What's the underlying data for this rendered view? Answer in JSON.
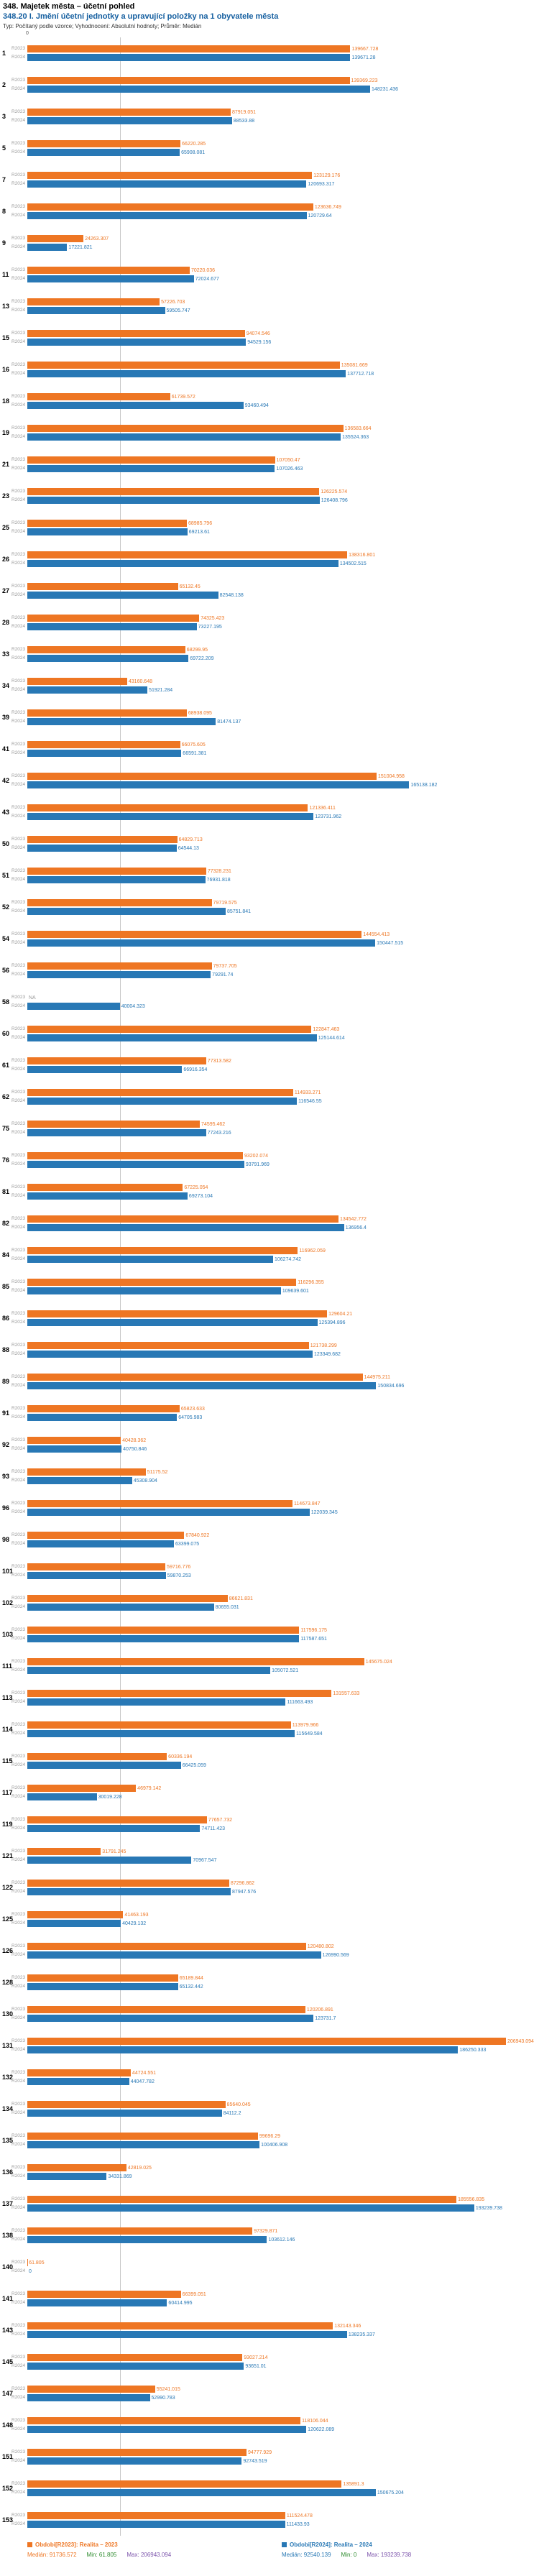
{
  "header": {
    "title": "348. Majetek města – účetní pohled",
    "subtitle": "348.20 I. Jmění účetní jednotky a upravující položky na 1 obyvatele města",
    "meta": "Typ: Počítaný podle vzorce; Vyhodnocení: Absolutní hodnoty; Průměr: Medián"
  },
  "axis": {
    "origin_label": "0"
  },
  "colors": {
    "r2023": "#EE7623",
    "r2024": "#2878B5",
    "min_stat": "#2E8B2E",
    "max_stat": "#7B52AB",
    "subtitle": "#155fa0",
    "gridline": "#c8c8c8",
    "na_label": "#999999"
  },
  "chart_data": {
    "type": "bar",
    "orientation": "horizontal",
    "title": "348.20 I. Jmění účetní jednotky a upravující položky na 1 obyvatele města",
    "axis_max": 220000,
    "gridline_value": 40000,
    "legend_position": "bottom",
    "categories": [
      "1",
      "2",
      "3",
      "5",
      "7",
      "8",
      "9",
      "11",
      "13",
      "15",
      "16",
      "18",
      "19",
      "21",
      "23",
      "25",
      "26",
      "27",
      "28",
      "33",
      "34",
      "39",
      "41",
      "42",
      "43",
      "50",
      "51",
      "52",
      "54",
      "56",
      "58",
      "60",
      "61",
      "62",
      "75",
      "76",
      "81",
      "82",
      "84",
      "85",
      "86",
      "88",
      "89",
      "91",
      "92",
      "93",
      "96",
      "98",
      "101",
      "102",
      "103",
      "111",
      "113",
      "114",
      "115",
      "117",
      "119",
      "121",
      "122",
      "125",
      "126",
      "128",
      "130",
      "131",
      "132",
      "134",
      "135",
      "136",
      "137",
      "138",
      "140",
      "141",
      "143",
      "145",
      "147",
      "148",
      "151",
      "152",
      "153"
    ],
    "series": [
      {
        "name": "R2023",
        "legend": "Obdobi[R2023]: Realita – 2023",
        "color": "#EE7623",
        "values": [
          "139667.728",
          "139369.223",
          "87919.051",
          "66220.285",
          "123129.176",
          "123636.749",
          "24263.307",
          "70220.036",
          "57226.703",
          "94074.546",
          "135081.669",
          "61739.572",
          "136583.664",
          "107050.47",
          "126225.574",
          "68985.796",
          "138316.801",
          "65132.45",
          "74325.423",
          "68299.95",
          "43160.648",
          "68938.095",
          "66075.605",
          "151004.958",
          "121336.411",
          "64829.713",
          "77328.231",
          "79719.575",
          "144554.413",
          "79737.705",
          "NA",
          "122847.463",
          "77313.582",
          "114933.271",
          "74595.462",
          "93202.074",
          "67225.054",
          "134542.772",
          "116962.059",
          "116296.355",
          "129604.21",
          "121738.299",
          "144975.211",
          "65823.633",
          "40428.362",
          "51175.52",
          "114673.847",
          "67840.922",
          "59716.776",
          "86621.831",
          "117596.175",
          "145675.024",
          "131557.633",
          "113979.966",
          "60336.194",
          "46979.142",
          "77657.732",
          "31791.245",
          "87296.862",
          "41463.193",
          "120480.802",
          "65189.844",
          "120206.891",
          "206943.094",
          "44724.551",
          "85640.045",
          "99696.29",
          "42819.025",
          "185556.835",
          "97329.871",
          "61.805",
          "66399.051",
          "132143.346",
          "93027.214",
          "55241.015",
          "118106.044",
          "94777.929",
          "135891.3",
          "111524.478"
        ]
      },
      {
        "name": "R2024",
        "legend": "Obdobi[R2024]: Realita – 2024",
        "color": "#2878B5",
        "values": [
          "139671.28",
          "148231.436",
          "88533.88",
          "65908.081",
          "120693.317",
          "120729.64",
          "17221.821",
          "72024.677",
          "59505.747",
          "94529.156",
          "137712.718",
          "93460.494",
          "135524.363",
          "107026.463",
          "126408.796",
          "69213.61",
          "134502.515",
          "82548.138",
          "73227.195",
          "69722.209",
          "51921.284",
          "81474.137",
          "66591.381",
          "165138.182",
          "123731.962",
          "64544.13",
          "76931.818",
          "85751.841",
          "150447.515",
          "79291.74",
          "40004.323",
          "125144.614",
          "66916.354",
          "116546.55",
          "77243.216",
          "93791.969",
          "69273.104",
          "136956.4",
          "106274.742",
          "109639.601",
          "125394.896",
          "123349.682",
          "150834.696",
          "64705.983",
          "40750.846",
          "45308.904",
          "122039.345",
          "63399.075",
          "59870.253",
          "80655.031",
          "117587.651",
          "105072.521",
          "111663.493",
          "115649.584",
          "66425.059",
          "30019.228",
          "74711.423",
          "70967.547",
          "87947.576",
          "40429.132",
          "126990.569",
          "65132.442",
          "123731.7",
          "186250.333",
          "44047.782",
          "84112.2",
          "100406.908",
          "34331.869",
          "193239.738",
          "103612.146",
          "0",
          "60414.995",
          "138235.337",
          "93651.01",
          "52990.783",
          "120622.089",
          "92743.519",
          "150675.204",
          "111433.93"
        ]
      }
    ],
    "stats": {
      "r2023": {
        "median_label": "Medián:",
        "median": "91736.572",
        "min_label": "Min:",
        "min": "61.805",
        "max_label": "Max:",
        "max": "206943.094"
      },
      "r2024": {
        "median_label": "Medián:",
        "median": "92540.139",
        "min_label": "Min:",
        "min": "0",
        "max_label": "Max:",
        "max": "193239.738"
      }
    }
  },
  "footer": {
    "legend_2023": "Obdobi[R2023]: Realita – 2023",
    "legend_2024": "Obdobi[R2024]: Realita – 2024"
  }
}
